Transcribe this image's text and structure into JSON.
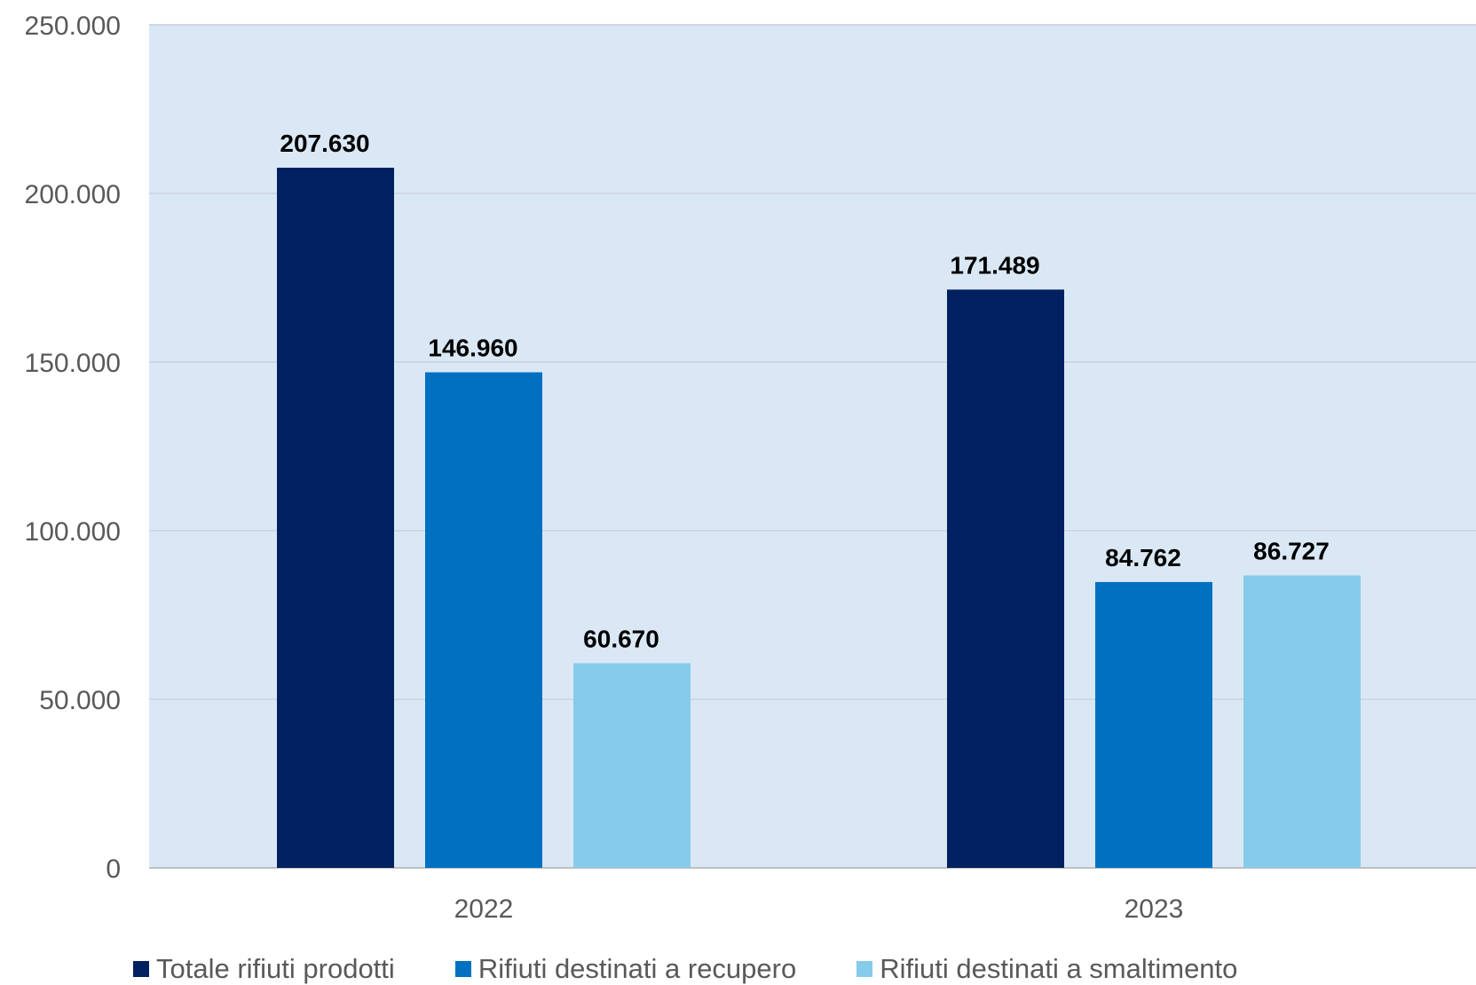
{
  "chart_data": {
    "type": "bar",
    "categories": [
      "2022",
      "2023"
    ],
    "series": [
      {
        "name": "Totale rifiuti prodotti",
        "values": [
          207630,
          171489
        ],
        "labels": [
          "207.630",
          "171.489"
        ],
        "color": "#002060"
      },
      {
        "name": "Rifiuti destinati a recupero",
        "values": [
          146960,
          84762
        ],
        "labels": [
          "146.960",
          "84.762"
        ],
        "color": "#0070C0"
      },
      {
        "name": "Rifiuti destinati a smaltimento",
        "values": [
          60670,
          86727
        ],
        "labels": [
          "60.670",
          "86.727"
        ],
        "color": "#87CBEA"
      }
    ],
    "ylim": [
      0,
      250000
    ],
    "yticks": [
      {
        "value": 0,
        "label": "0"
      },
      {
        "value": 50000,
        "label": "50.000"
      },
      {
        "value": 100000,
        "label": "100.000"
      },
      {
        "value": 150000,
        "label": "150.000"
      },
      {
        "value": 200000,
        "label": "200.000"
      },
      {
        "value": 250000,
        "label": "250.000"
      }
    ],
    "grid": true,
    "legend_position": "bottom",
    "plot_background": "#DAE8F6",
    "title": "",
    "xlabel": "",
    "ylabel": ""
  }
}
